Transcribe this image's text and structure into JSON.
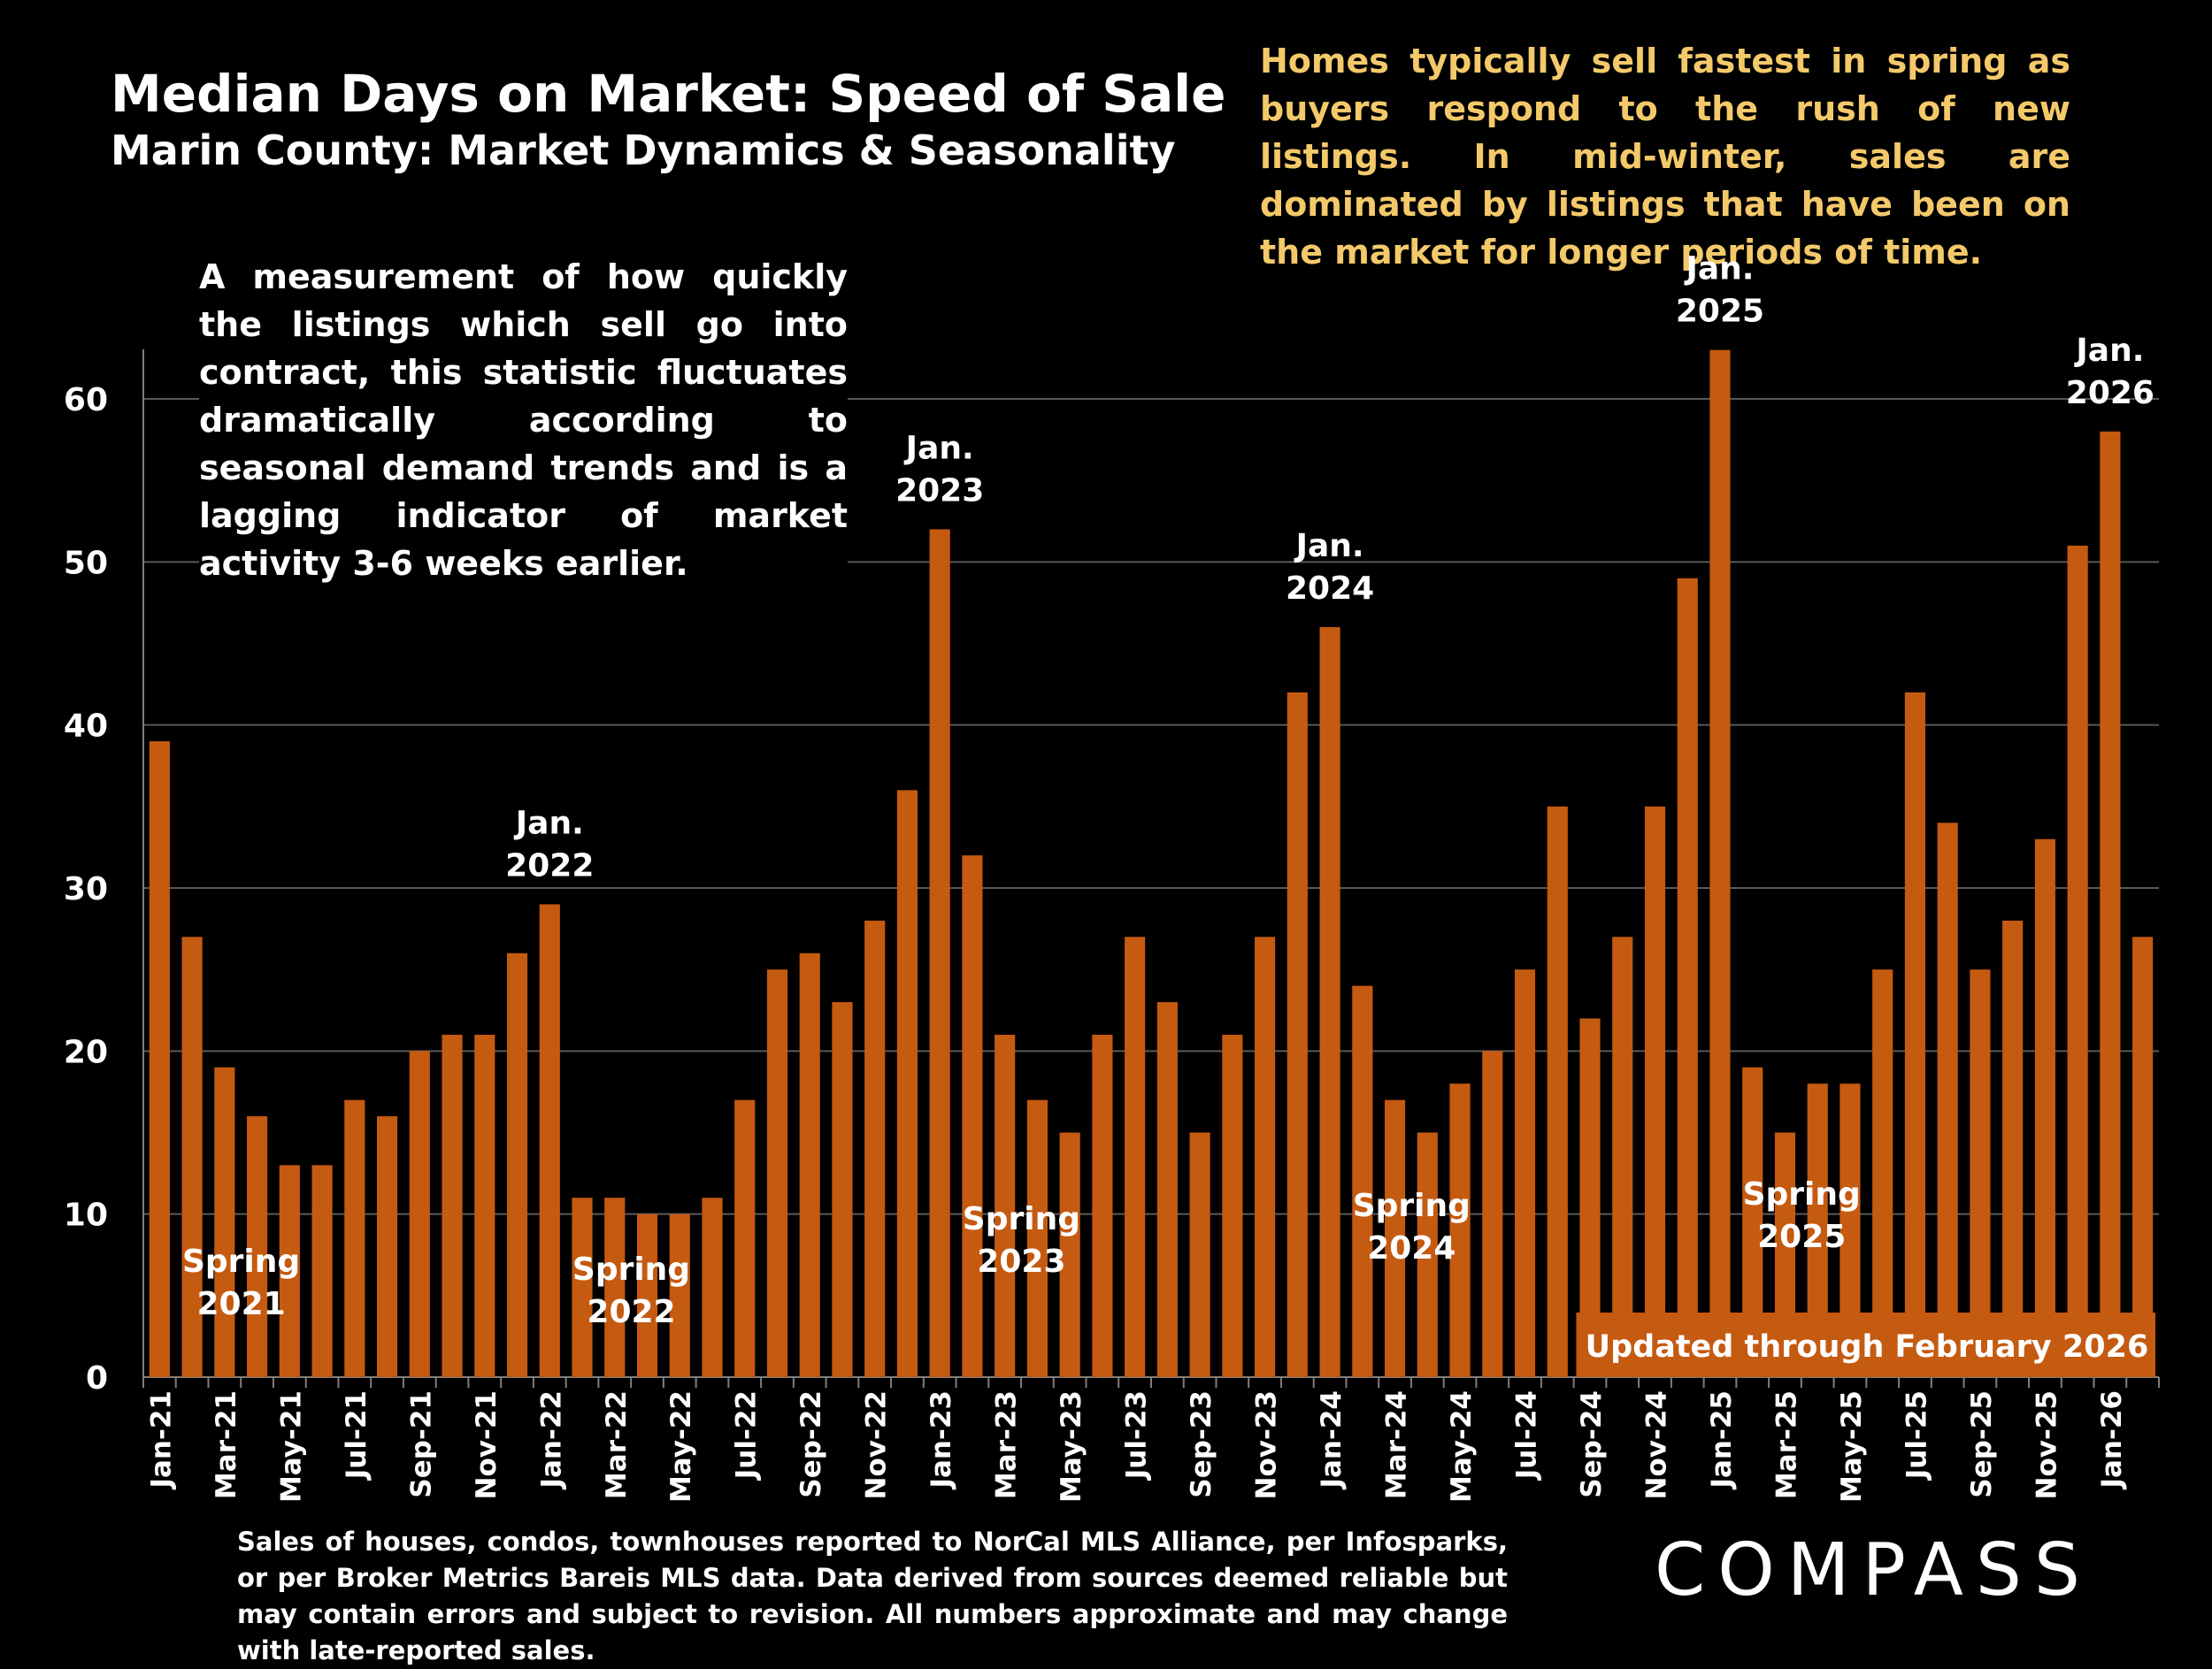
{
  "header": {
    "title": "Median Days on Market:  Speed of Sale",
    "subtitle": "Marin County: Market Dynamics & Seasonality"
  },
  "notes": {
    "seasonality": "Homes typically sell fastest in spring as buyers respond to the rush of new listings. In mid-winter, sales are dominated by listings that have been on the market for longer periods of time.",
    "measurement": "A measurement of how quickly the listings which sell go into contract, this statistic fluctuates dramatically according to seasonal demand trends and is a lagging indicator of market activity 3-6 weeks earlier."
  },
  "footer": {
    "source": "Sales of houses, condos, townhouses reported to NorCal MLS Alliance, per Infosparks, or per Broker Metrics Bareis MLS data. Data derived from sources deemed reliable but may contain errors and subject to revision. All numbers approximate and may change with late-reported sales."
  },
  "brand": {
    "logo_text": "COMPASS"
  },
  "colors": {
    "bar": "#C55A11",
    "background": "#000000",
    "note_highlight": "#F4C96A",
    "text": "#FFFFFF",
    "grid": "#595959"
  },
  "chart_data": {
    "type": "bar",
    "title": "",
    "xlabel": "",
    "ylabel": "",
    "ylim": [
      0,
      63
    ],
    "yticks": [
      0,
      10,
      20,
      30,
      40,
      50,
      60
    ],
    "grid": true,
    "categories": [
      "Jan-21",
      "Feb-21",
      "Mar-21",
      "Apr-21",
      "May-21",
      "Jun-21",
      "Jul-21",
      "Aug-21",
      "Sep-21",
      "Oct-21",
      "Nov-21",
      "Dec-21",
      "Jan-22",
      "Feb-22",
      "Mar-22",
      "Apr-22",
      "May-22",
      "Jun-22",
      "Jul-22",
      "Aug-22",
      "Sep-22",
      "Oct-22",
      "Nov-22",
      "Dec-22",
      "Jan-23",
      "Feb-23",
      "Mar-23",
      "Apr-23",
      "May-23",
      "Jun-23",
      "Jul-23",
      "Aug-23",
      "Sep-23",
      "Oct-23",
      "Nov-23",
      "Dec-23",
      "Jan-24",
      "Feb-24",
      "Mar-24",
      "Apr-24",
      "May-24",
      "Jun-24",
      "Jul-24",
      "Aug-24",
      "Sep-24",
      "Oct-24",
      "Nov-24",
      "Dec-24",
      "Jan-25",
      "Feb-25",
      "Mar-25",
      "Apr-25",
      "May-25",
      "Jun-25",
      "Jul-25",
      "Aug-25",
      "Sep-25",
      "Oct-25",
      "Nov-25",
      "Dec-25",
      "Jan-26",
      "Feb-26"
    ],
    "x_tick_labels": [
      "Jan-21",
      "Mar-21",
      "May-21",
      "Jul-21",
      "Sep-21",
      "Nov-21",
      "Jan-22",
      "Mar-22",
      "May-22",
      "Jul-22",
      "Sep-22",
      "Nov-22",
      "Jan-23",
      "Mar-23",
      "May-23",
      "Jul-23",
      "Sep-23",
      "Nov-23",
      "Jan-24",
      "Mar-24",
      "May-24",
      "Jul-24",
      "Sep-24",
      "Nov-24",
      "Jan-25",
      "Mar-25",
      "May-25",
      "Jul-25",
      "Sep-25",
      "Nov-25",
      "Jan-26"
    ],
    "values": [
      39,
      27,
      19,
      16,
      13,
      13,
      17,
      16,
      20,
      21,
      21,
      26,
      29,
      11,
      11,
      10,
      10,
      11,
      17,
      25,
      26,
      23,
      28,
      36,
      52,
      32,
      21,
      17,
      15,
      21,
      27,
      23,
      15,
      21,
      27,
      42,
      46,
      24,
      17,
      15,
      18,
      20,
      25,
      35,
      22,
      27,
      35,
      49,
      63,
      19,
      15,
      18,
      18,
      25,
      42,
      34,
      25,
      28,
      33,
      51,
      58,
      27
    ],
    "annotations": [
      {
        "label": "Jan.\n2022",
        "category": "Jan-22"
      },
      {
        "label": "Jan.\n2023",
        "category": "Jan-23"
      },
      {
        "label": "Jan.\n2024",
        "category": "Jan-24"
      },
      {
        "label": "Jan.\n2025",
        "category": "Jan-25"
      },
      {
        "label": "Jan.\n2026",
        "category": "Jan-26"
      },
      {
        "label": "Spring\n2021",
        "category": "Apr-21",
        "position": "inside-bottom"
      },
      {
        "label": "Spring\n2022",
        "category": "Apr-22",
        "position": "inside-bottom"
      },
      {
        "label": "Spring\n2023",
        "category": "Apr-23",
        "position": "inside-bottom"
      },
      {
        "label": "Spring\n2024",
        "category": "Apr-24",
        "position": "inside-bottom"
      },
      {
        "label": "Spring\n2025",
        "category": "Apr-25",
        "position": "inside-bottom"
      }
    ],
    "banner": "Updated through February 2026"
  }
}
